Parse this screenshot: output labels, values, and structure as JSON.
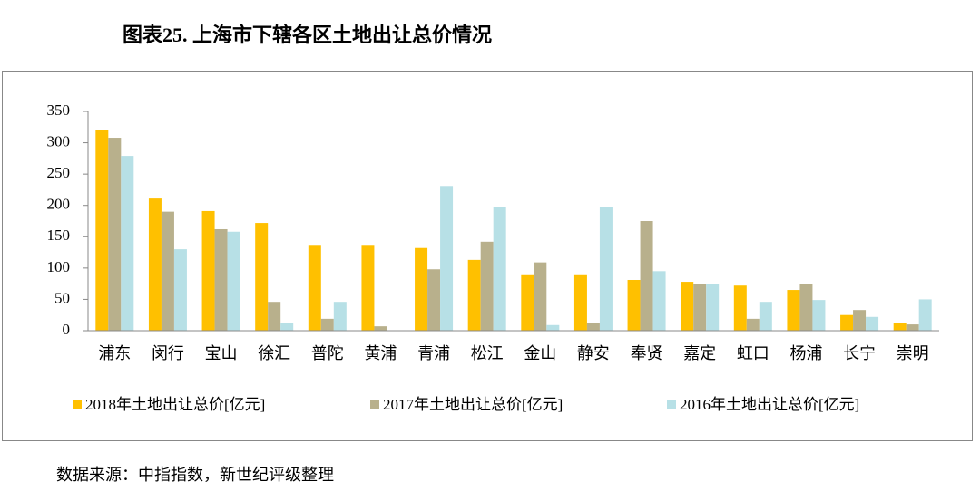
{
  "chart_data": {
    "type": "bar",
    "title": "图表25. 上海市下辖各区土地出让总价情况",
    "source": "数据来源：中指指数，新世纪评级整理",
    "categories": [
      "浦东",
      "闵行",
      "宝山",
      "徐汇",
      "普陀",
      "黄浦",
      "青浦",
      "松江",
      "金山",
      "静安",
      "奉贤",
      "嘉定",
      "虹口",
      "杨浦",
      "长宁",
      "崇明"
    ],
    "series": [
      {
        "name": "2018年土地出让总价[亿元]",
        "color": "#FFC000",
        "values": [
          321,
          211,
          191,
          172,
          137,
          137,
          132,
          113,
          90,
          90,
          81,
          78,
          72,
          65,
          25,
          13
        ]
      },
      {
        "name": "2017年土地出让总价[亿元]",
        "color": "#B8B08C",
        "values": [
          308,
          190,
          162,
          46,
          19,
          7,
          98,
          142,
          109,
          13,
          175,
          75,
          19,
          74,
          33,
          10
        ]
      },
      {
        "name": "2016年土地出让总价[亿元]",
        "color": "#B7E0E6",
        "values": [
          279,
          130,
          158,
          13,
          46,
          0,
          231,
          198,
          9,
          197,
          95,
          74,
          46,
          49,
          22,
          50
        ]
      }
    ],
    "ylim": [
      0,
      350
    ],
    "yticks": [
      0,
      50,
      100,
      150,
      200,
      250,
      300,
      350
    ],
    "grid": false,
    "legend": "bottom"
  }
}
